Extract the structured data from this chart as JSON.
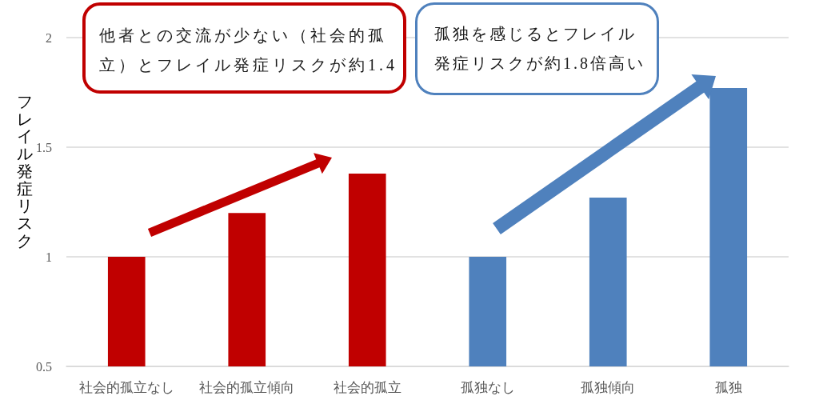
{
  "chart_data": {
    "type": "bar",
    "ylabel": "フレイル発症リスク",
    "categories": [
      "社会的孤立なし",
      "社会的孤立傾向",
      "社会的孤立",
      "孤独なし",
      "孤独傾向",
      "孤独"
    ],
    "values": [
      1.0,
      1.2,
      1.38,
      1.0,
      1.27,
      1.77
    ],
    "colors": [
      "#c00000",
      "#c00000",
      "#c00000",
      "#4f81bd",
      "#4f81bd",
      "#4f81bd"
    ],
    "ylim": [
      0.5,
      2
    ],
    "yticks": [
      0.5,
      1,
      1.5,
      2
    ],
    "grid": "y",
    "annotations": [
      "他者との交流が少ない（社会的孤立）とフレイル発症リスクが約1.4",
      "孤独を感じるとフレイル発症リスクが約1.8倍高い"
    ]
  }
}
